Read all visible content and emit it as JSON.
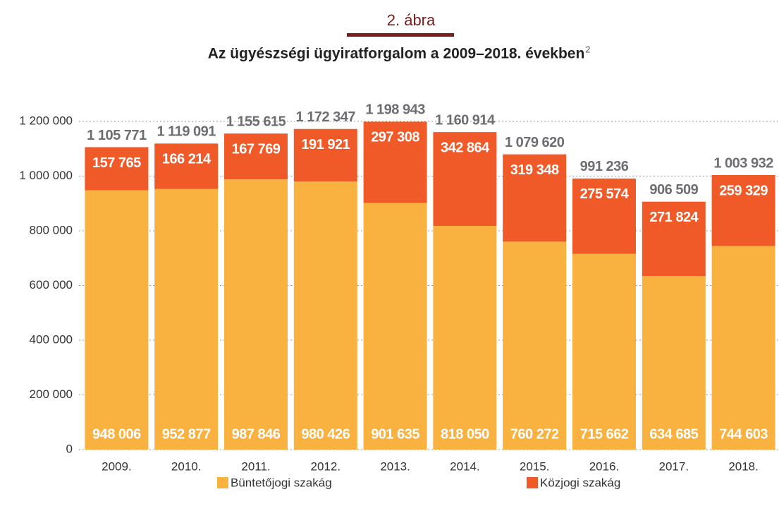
{
  "chart_data": {
    "type": "stacked_bar",
    "figure_label": "2. ábra",
    "title": "Az ügyészségi ügyiratforgalom a 2009–2018. években",
    "title_footnote": "2",
    "categories": [
      "2009.",
      "2010.",
      "2011.",
      "2012.",
      "2013.",
      "2014.",
      "2015.",
      "2016.",
      "2017.",
      "2018."
    ],
    "series": [
      {
        "name": "Büntetőjogi szakág",
        "color": "#f9b13f",
        "values": [
          948006,
          952877,
          987846,
          980426,
          901635,
          818050,
          760272,
          715662,
          634685,
          744603
        ],
        "value_labels": [
          "948 006",
          "952 877",
          "987 846",
          "980 426",
          "901 635",
          "818 050",
          "760 272",
          "715 662",
          "634 685",
          "744 603"
        ]
      },
      {
        "name": "Közjogi szakág",
        "color": "#f05a28",
        "values": [
          157765,
          166214,
          167769,
          191921,
          297308,
          342864,
          319348,
          275574,
          271824,
          259329
        ],
        "value_labels": [
          "157 765",
          "166 214",
          "167 769",
          "191 921",
          "297 308",
          "342 864",
          "319 348",
          "275 574",
          "271 824",
          "259 329"
        ]
      }
    ],
    "totals": [
      1105771,
      1119091,
      1155615,
      1172347,
      1198943,
      1160914,
      1079620,
      991236,
      906509,
      1003932
    ],
    "total_labels": [
      "1 105 771",
      "1 119 091",
      "1 155 615",
      "1 172 347",
      "1 198 943",
      "1 160 914",
      "1 079 620",
      "991 236",
      "906 509",
      "1 003 932"
    ],
    "ylim": [
      0,
      1200000
    ],
    "yticks": [
      0,
      {
        "value": 200000,
        "label": "200 000"
      },
      {
        "value": 400000,
        "label": "400 000"
      },
      {
        "value": 600000,
        "label": "600 000"
      },
      {
        "value": 800000,
        "label": "800 000"
      },
      {
        "value": 1000000,
        "label": "1 000 000"
      },
      {
        "value": 1200000,
        "label": "1 200 000"
      }
    ],
    "grid": true,
    "legend": "bottom"
  }
}
